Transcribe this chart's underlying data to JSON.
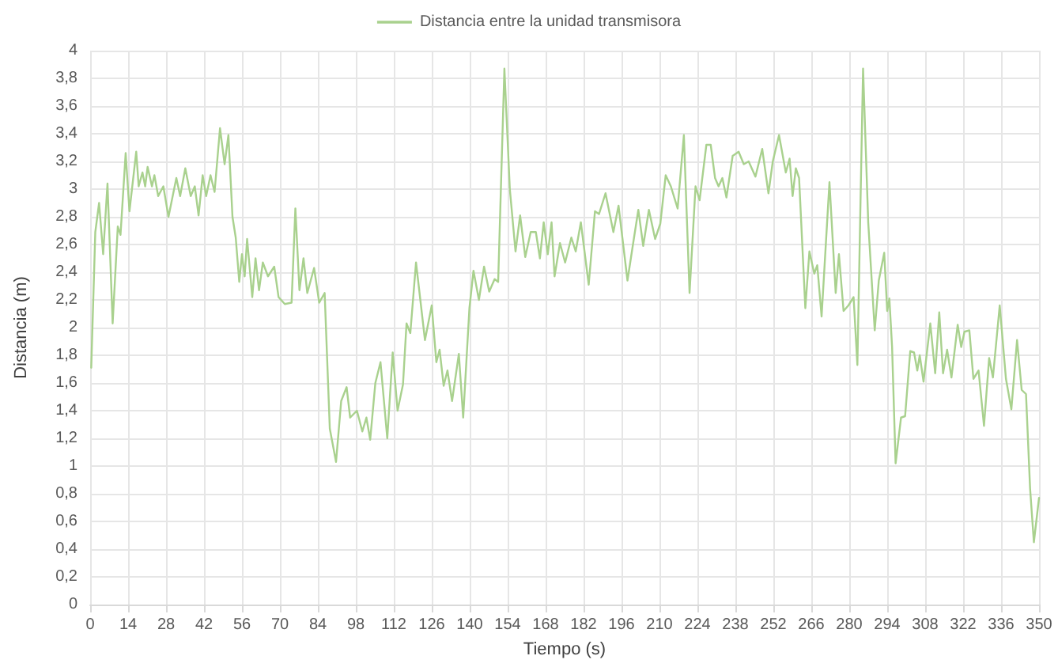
{
  "chart_data": {
    "type": "line",
    "xlabel": "Tiempo (s)",
    "ylabel": "Distancia (m)",
    "legend": "top",
    "grid": true,
    "marker": "none",
    "line_style": "solid",
    "xlim": [
      0,
      350
    ],
    "xticks": [
      0,
      14,
      28,
      42,
      56,
      70,
      84,
      98,
      112,
      126,
      140,
      154,
      168,
      182,
      196,
      210,
      224,
      238,
      252,
      266,
      280,
      294,
      308,
      322,
      336,
      350
    ],
    "ylim": [
      0,
      4
    ],
    "yticks": [
      0,
      {
        "value": 0.2,
        "label": "0,2"
      },
      {
        "value": 0.4,
        "label": "0,4"
      },
      {
        "value": 0.6,
        "label": "0,6"
      },
      {
        "value": 0.8,
        "label": "0,8"
      },
      1,
      {
        "value": 1.2,
        "label": "1,2"
      },
      {
        "value": 1.4,
        "label": "1,4"
      },
      {
        "value": 1.6,
        "label": "1,6"
      },
      {
        "value": 1.8,
        "label": "1,8"
      },
      2,
      {
        "value": 2.2,
        "label": "2,2"
      },
      {
        "value": 2.4,
        "label": "2,4"
      },
      {
        "value": 2.6,
        "label": "2,6"
      },
      {
        "value": 2.8,
        "label": "2,8"
      },
      3,
      {
        "value": 3.2,
        "label": "3,2"
      },
      {
        "value": 3.4,
        "label": "3,4"
      },
      {
        "value": 3.6,
        "label": "3,6"
      },
      {
        "value": 3.8,
        "label": "3,8"
      },
      4
    ],
    "series": [
      {
        "name": "Distancia entre la unidad transmisora",
        "color": "#a9d18e",
        "x": [
          0.4,
          1.9,
          3.3,
          4.8,
          6.4,
          8.3,
          10.2,
          11.2,
          13.1,
          14.5,
          17.0,
          17.9,
          19.3,
          20.3,
          21.2,
          22.8,
          23.7,
          25.1,
          27.0,
          28.9,
          31.8,
          33.2,
          35.1,
          37.1,
          38.6,
          40.0,
          41.5,
          42.8,
          44.4,
          45.9,
          47.9,
          49.6,
          51.0,
          52.5,
          53.7,
          55.0,
          56.0,
          57.0,
          57.9,
          59.8,
          61.0,
          62.3,
          63.7,
          65.6,
          67.9,
          69.5,
          71.8,
          74.3,
          75.7,
          77.2,
          78.7,
          80.1,
          82.6,
          84.5,
          86.5,
          88.4,
          90.7,
          92.6,
          94.6,
          95.9,
          98.4,
          100.4,
          101.9,
          103.3,
          105.2,
          107.1,
          109.6,
          111.6,
          113.4,
          115.4,
          116.7,
          118.1,
          120.2,
          123.5,
          126.0,
          127.7,
          128.9,
          130.4,
          131.8,
          133.5,
          136.0,
          137.6,
          139.9,
          141.4,
          143.4,
          145.3,
          147.2,
          149.2,
          150.5,
          152.8,
          154.8,
          156.9,
          158.6,
          160.5,
          162.5,
          164.4,
          165.9,
          167.3,
          168.8,
          170.2,
          171.3,
          173.3,
          175.2,
          177.5,
          179.1,
          181.0,
          183.9,
          186.2,
          187.7,
          190.1,
          193.0,
          194.9,
          198.2,
          200.3,
          202.2,
          204.0,
          206.1,
          208.4,
          210.3,
          212.3,
          214.2,
          216.7,
          219.0,
          221.1,
          223.3,
          224.8,
          227.3,
          228.9,
          230.5,
          231.8,
          233.2,
          234.7,
          237.0,
          239.2,
          241.1,
          242.9,
          245.4,
          247.9,
          250.2,
          251.8,
          254.1,
          256.6,
          258.0,
          259.1,
          260.3,
          261.5,
          263.8,
          265.3,
          267.1,
          268.2,
          269.8,
          272.7,
          275.0,
          276.2,
          277.9,
          279.7,
          281.6,
          283.0,
          285.1,
          287.0,
          289.4,
          290.9,
          292.9,
          294.0,
          294.8,
          295.8,
          297.1,
          299.1,
          300.6,
          302.5,
          303.9,
          305.1,
          306.0,
          307.4,
          309.9,
          311.7,
          313.2,
          314.6,
          316.1,
          317.7,
          320.0,
          321.3,
          322.5,
          324.3,
          325.8,
          327.7,
          329.7,
          331.6,
          333.0,
          335.5,
          337.8,
          339.8,
          341.9,
          343.6,
          345.2,
          346.7,
          348.1,
          350.0
        ],
        "values": [
          1.71,
          2.69,
          2.9,
          2.53,
          3.04,
          2.03,
          2.73,
          2.67,
          3.26,
          2.84,
          3.27,
          3.02,
          3.12,
          3.02,
          3.16,
          3.02,
          3.1,
          2.95,
          3.02,
          2.8,
          3.08,
          2.95,
          3.15,
          2.95,
          3.02,
          2.81,
          3.1,
          2.95,
          3.1,
          2.98,
          3.44,
          3.18,
          3.39,
          2.8,
          2.65,
          2.33,
          2.53,
          2.37,
          2.64,
          2.22,
          2.5,
          2.27,
          2.47,
          2.37,
          2.44,
          2.22,
          2.17,
          2.18,
          2.86,
          2.27,
          2.5,
          2.25,
          2.43,
          2.18,
          2.25,
          1.27,
          1.03,
          1.47,
          1.57,
          1.35,
          1.4,
          1.25,
          1.35,
          1.19,
          1.6,
          1.75,
          1.2,
          1.82,
          1.4,
          1.59,
          2.03,
          1.96,
          2.47,
          1.91,
          2.16,
          1.75,
          1.84,
          1.58,
          1.69,
          1.47,
          1.81,
          1.35,
          2.14,
          2.41,
          2.2,
          2.44,
          2.26,
          2.35,
          2.33,
          3.87,
          3.0,
          2.55,
          2.81,
          2.51,
          2.69,
          2.69,
          2.5,
          2.76,
          2.53,
          2.76,
          2.37,
          2.61,
          2.47,
          2.65,
          2.55,
          2.76,
          2.31,
          2.84,
          2.82,
          2.97,
          2.69,
          2.88,
          2.34,
          2.61,
          2.85,
          2.59,
          2.85,
          2.64,
          2.75,
          3.1,
          3.02,
          2.86,
          3.39,
          2.25,
          3.02,
          2.92,
          3.32,
          3.32,
          3.08,
          3.02,
          3.08,
          2.94,
          3.24,
          3.27,
          3.18,
          3.2,
          3.09,
          3.29,
          2.97,
          3.2,
          3.39,
          3.12,
          3.22,
          2.95,
          3.15,
          3.08,
          2.14,
          2.55,
          2.39,
          2.45,
          2.08,
          3.05,
          2.25,
          2.53,
          2.12,
          2.16,
          2.22,
          1.73,
          3.87,
          2.76,
          1.98,
          2.34,
          2.54,
          2.12,
          2.21,
          1.86,
          1.02,
          1.35,
          1.36,
          1.83,
          1.82,
          1.69,
          1.8,
          1.61,
          2.03,
          1.67,
          2.11,
          1.67,
          1.84,
          1.64,
          2.02,
          1.86,
          1.97,
          1.98,
          1.63,
          1.69,
          1.29,
          1.78,
          1.64,
          2.16,
          1.63,
          1.41,
          1.91,
          1.55,
          1.52,
          0.84,
          0.45,
          0.77
        ]
      }
    ]
  }
}
